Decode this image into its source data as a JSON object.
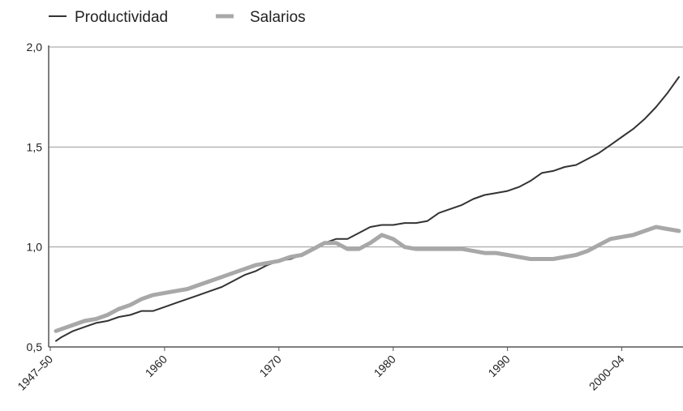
{
  "chart_data": {
    "type": "line",
    "title": "",
    "xlabel": "",
    "ylabel": "",
    "ylim": [
      0.5,
      2.0
    ],
    "yticks": [
      {
        "value": 0.5,
        "label": "0,5"
      },
      {
        "value": 1.0,
        "label": "1,0"
      },
      {
        "value": 1.5,
        "label": "1,5"
      },
      {
        "value": 2.0,
        "label": "2,0"
      }
    ],
    "xlim": [
      1950,
      2005
    ],
    "xticks": [
      {
        "value": 1950,
        "label": "1947–50"
      },
      {
        "value": 1960,
        "label": "1960"
      },
      {
        "value": 1970,
        "label": "1970"
      },
      {
        "value": 1980,
        "label": "1980"
      },
      {
        "value": 1990,
        "label": "1990"
      },
      {
        "value": 2000,
        "label": "2000–04"
      }
    ],
    "grid": "horizontal",
    "legend_position": "top-left",
    "series": [
      {
        "name": "Productividad",
        "color": "#333333",
        "points": [
          [
            1950.5,
            0.53
          ],
          [
            1951,
            0.55
          ],
          [
            1952,
            0.58
          ],
          [
            1953,
            0.6
          ],
          [
            1954,
            0.62
          ],
          [
            1955,
            0.63
          ],
          [
            1956,
            0.65
          ],
          [
            1957,
            0.66
          ],
          [
            1958,
            0.68
          ],
          [
            1959,
            0.68
          ],
          [
            1960,
            0.7
          ],
          [
            1961,
            0.72
          ],
          [
            1962,
            0.74
          ],
          [
            1963,
            0.76
          ],
          [
            1964,
            0.78
          ],
          [
            1965,
            0.8
          ],
          [
            1966,
            0.83
          ],
          [
            1967,
            0.86
          ],
          [
            1968,
            0.88
          ],
          [
            1969,
            0.91
          ],
          [
            1970,
            0.93
          ],
          [
            1971,
            0.94
          ],
          [
            1972,
            0.96
          ],
          [
            1973,
            0.99
          ],
          [
            1974,
            1.02
          ],
          [
            1975,
            1.04
          ],
          [
            1976,
            1.04
          ],
          [
            1977,
            1.07
          ],
          [
            1978,
            1.1
          ],
          [
            1979,
            1.11
          ],
          [
            1980,
            1.11
          ],
          [
            1981,
            1.12
          ],
          [
            1982,
            1.12
          ],
          [
            1983,
            1.13
          ],
          [
            1984,
            1.17
          ],
          [
            1985,
            1.19
          ],
          [
            1986,
            1.21
          ],
          [
            1987,
            1.24
          ],
          [
            1988,
            1.26
          ],
          [
            1989,
            1.27
          ],
          [
            1990,
            1.28
          ],
          [
            1991,
            1.3
          ],
          [
            1992,
            1.33
          ],
          [
            1993,
            1.37
          ],
          [
            1994,
            1.38
          ],
          [
            1995,
            1.4
          ],
          [
            1996,
            1.41
          ],
          [
            1997,
            1.44
          ],
          [
            1998,
            1.47
          ],
          [
            1999,
            1.51
          ],
          [
            2000,
            1.55
          ],
          [
            2001,
            1.59
          ],
          [
            2002,
            1.64
          ],
          [
            2003,
            1.7
          ],
          [
            2004,
            1.77
          ],
          [
            2005,
            1.85
          ]
        ]
      },
      {
        "name": "Salarios",
        "color": "#a8a8a8",
        "points": [
          [
            1950.5,
            0.58
          ],
          [
            1951,
            0.59
          ],
          [
            1952,
            0.61
          ],
          [
            1953,
            0.63
          ],
          [
            1954,
            0.64
          ],
          [
            1955,
            0.66
          ],
          [
            1956,
            0.69
          ],
          [
            1957,
            0.71
          ],
          [
            1958,
            0.74
          ],
          [
            1959,
            0.76
          ],
          [
            1960,
            0.77
          ],
          [
            1961,
            0.78
          ],
          [
            1962,
            0.79
          ],
          [
            1963,
            0.81
          ],
          [
            1964,
            0.83
          ],
          [
            1965,
            0.85
          ],
          [
            1966,
            0.87
          ],
          [
            1967,
            0.89
          ],
          [
            1968,
            0.91
          ],
          [
            1969,
            0.92
          ],
          [
            1970,
            0.93
          ],
          [
            1971,
            0.95
          ],
          [
            1972,
            0.96
          ],
          [
            1973,
            0.99
          ],
          [
            1974,
            1.02
          ],
          [
            1975,
            1.02
          ],
          [
            1976,
            0.99
          ],
          [
            1977,
            0.99
          ],
          [
            1978,
            1.02
          ],
          [
            1979,
            1.06
          ],
          [
            1980,
            1.04
          ],
          [
            1981,
            1.0
          ],
          [
            1982,
            0.99
          ],
          [
            1983,
            0.99
          ],
          [
            1984,
            0.99
          ],
          [
            1985,
            0.99
          ],
          [
            1986,
            0.99
          ],
          [
            1987,
            0.98
          ],
          [
            1988,
            0.97
          ],
          [
            1989,
            0.97
          ],
          [
            1990,
            0.96
          ],
          [
            1991,
            0.95
          ],
          [
            1992,
            0.94
          ],
          [
            1993,
            0.94
          ],
          [
            1994,
            0.94
          ],
          [
            1995,
            0.95
          ],
          [
            1996,
            0.96
          ],
          [
            1997,
            0.98
          ],
          [
            1998,
            1.01
          ],
          [
            1999,
            1.04
          ],
          [
            2000,
            1.05
          ],
          [
            2001,
            1.06
          ],
          [
            2002,
            1.08
          ],
          [
            2003,
            1.1
          ],
          [
            2004,
            1.09
          ],
          [
            2005,
            1.08
          ]
        ]
      }
    ]
  }
}
